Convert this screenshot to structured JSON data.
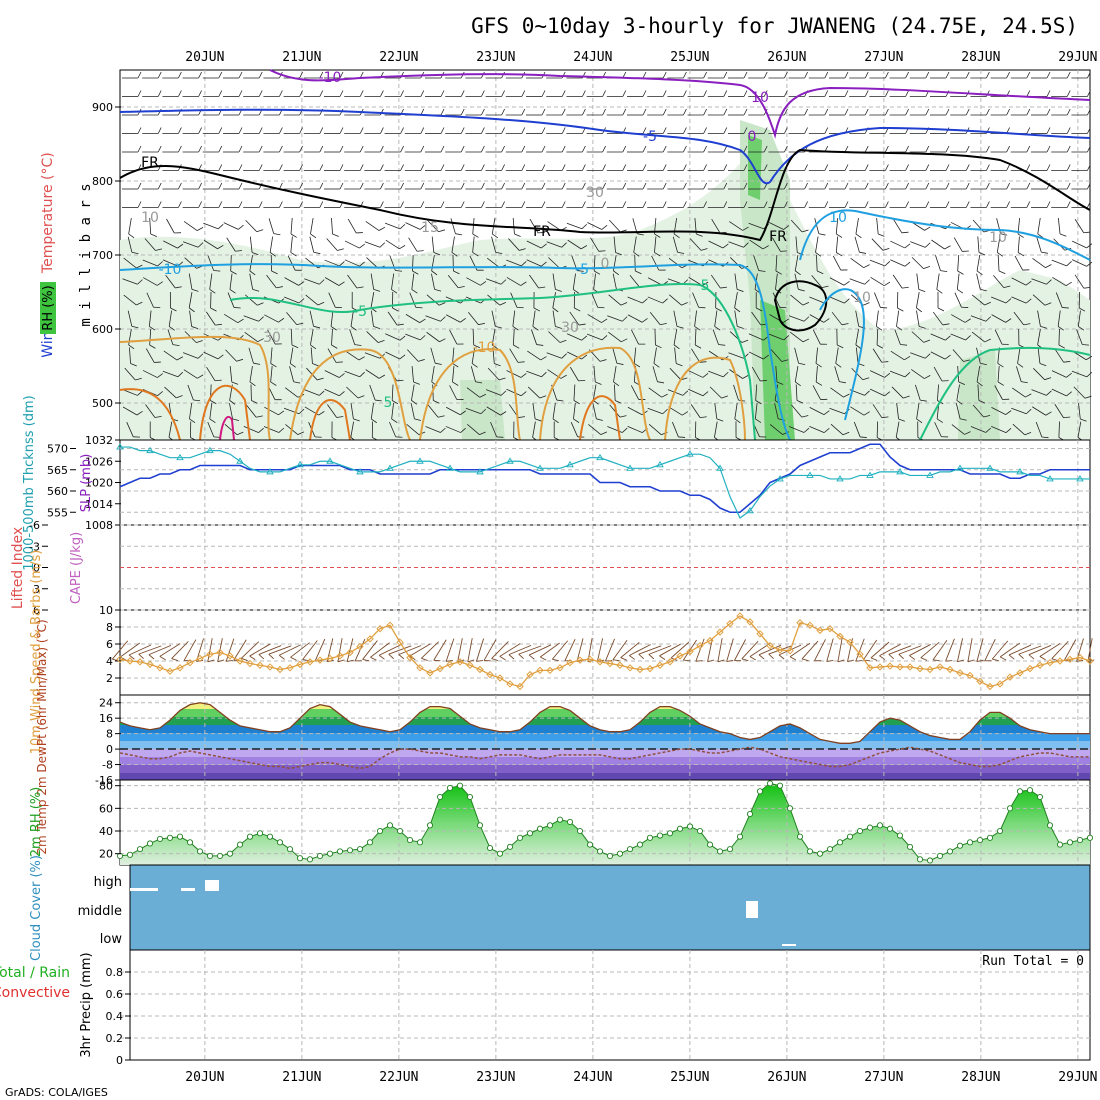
{
  "title": "GFS 0~10day 3-hourly for JWANENG (24.75E, 24.5S)",
  "footer": "GrADS: COLA/IGES",
  "x_axis": {
    "dates": [
      "20JUN",
      "21JUN",
      "22JUN",
      "23JUN",
      "24JUN",
      "25JUN",
      "26JUN",
      "27JUN",
      "28JUN",
      "29JUN"
    ],
    "hours_total": 240
  },
  "colors": {
    "grid": "#bfbfbf",
    "purple": "#8a1fbf",
    "blue": "#1f3fd0",
    "cyan": "#1fa0e0",
    "green": "#20c080",
    "orange": "#e0a040",
    "orange_dark": "#e07820",
    "magenta": "#d01880",
    "rh_green": "#3ec43e",
    "slp": "#20b0c0",
    "wind": "#e0a040",
    "cloud": "#6aaed6"
  },
  "chart_data": [
    {
      "type": "contour",
      "panel": "upper_air",
      "ylabel": "m i l l i b a r s",
      "legend_labels": [
        "Wind (m/s)",
        "Temperature (°C)",
        "RH (%)"
      ],
      "y_ticks": [
        500,
        600,
        700,
        800,
        900
      ],
      "ylim": [
        450,
        950
      ],
      "contour_labels": [
        "-10",
        "10",
        "-5",
        "0",
        "FR",
        "FR",
        "FR",
        "-10",
        "-5",
        "5",
        "-5",
        "10",
        "-10",
        "5",
        "10",
        "15",
        "0",
        "30",
        "30",
        "30",
        "10",
        "10"
      ]
    },
    {
      "type": "line",
      "panel": "thickness_slp",
      "ylabel_left": "1000-500mb Thcknss (dm)",
      "ylabel_right": "SLP (mb)",
      "y_ticks_left": [
        555,
        560,
        565,
        570
      ],
      "ylim_left": [
        552,
        572
      ],
      "y_ticks_right": [
        1008,
        1014,
        1020,
        1026,
        1032
      ],
      "ylim_right": [
        1008,
        1032
      ],
      "series": [
        {
          "name": "1000-500mb Thcknss (dm)",
          "values": [
            561,
            562,
            563,
            563,
            564,
            564,
            565,
            565,
            566,
            566,
            566,
            566,
            566,
            565,
            565,
            565,
            565,
            565,
            566,
            566,
            566,
            566,
            566,
            565,
            565,
            565,
            564,
            564,
            564,
            564,
            564,
            564,
            565,
            565,
            565,
            565,
            565,
            565,
            565,
            565,
            565,
            565,
            564,
            564,
            564,
            564,
            564,
            564,
            562,
            562,
            562,
            561,
            561,
            561,
            560,
            560,
            560,
            559,
            559,
            558,
            556,
            555,
            555,
            557,
            559,
            562,
            563,
            564,
            566,
            567,
            568,
            569,
            569,
            569,
            570,
            571,
            571,
            568,
            566,
            565,
            565,
            565,
            565,
            565,
            565,
            564,
            564,
            564,
            564,
            563,
            563,
            564,
            564,
            565,
            565,
            565,
            565,
            565
          ]
        },
        {
          "name": "SLP (mb)",
          "values": [
            1030,
            1030,
            1029,
            1029,
            1028,
            1027,
            1027,
            1027,
            1028,
            1029,
            1029,
            1028,
            1026,
            1024,
            1023,
            1023,
            1023,
            1024,
            1025,
            1025,
            1026,
            1026,
            1025,
            1024,
            1023,
            1023,
            1023,
            1024,
            1025,
            1026,
            1026,
            1026,
            1025,
            1024,
            1023,
            1023,
            1023,
            1024,
            1025,
            1026,
            1026,
            1025,
            1024,
            1024,
            1024,
            1025,
            1026,
            1027,
            1027,
            1026,
            1025,
            1024,
            1024,
            1024,
            1025,
            1026,
            1027,
            1028,
            1028,
            1027,
            1024,
            1016,
            1010,
            1012,
            1016,
            1019,
            1021,
            1022,
            1022,
            1022,
            1022,
            1021,
            1021,
            1021,
            1022,
            1022,
            1023,
            1023,
            1023,
            1022,
            1022,
            1022,
            1023,
            1023,
            1024,
            1024,
            1024,
            1024,
            1023,
            1023,
            1023,
            1022,
            1022,
            1021,
            1021,
            1021,
            1021,
            1021
          ]
        }
      ]
    },
    {
      "type": "line",
      "panel": "cape_li",
      "ylabel_left": "Lifted Index",
      "ylabel_right": "CAPE (J/kg)",
      "y_ticks": [
        -6,
        -3,
        0,
        3,
        6
      ],
      "ylim": [
        -6,
        6
      ],
      "series": [
        {
          "name": "Lifted Index",
          "values": []
        }
      ]
    },
    {
      "type": "line",
      "panel": "wind10m",
      "ylabel": "10m Wind Speed & Barbs (m/s)",
      "y_ticks": [
        2,
        4,
        6,
        8,
        10
      ],
      "ylim": [
        0,
        10
      ],
      "series": [
        {
          "name": "10m Wind Speed",
          "values": [
            4.2,
            4.0,
            3.9,
            3.6,
            3.2,
            2.8,
            3.2,
            3.8,
            4.3,
            4.8,
            5.0,
            4.6,
            4.0,
            3.7,
            3.5,
            3.3,
            3.0,
            3.2,
            3.6,
            3.9,
            4.1,
            4.3,
            4.6,
            5.0,
            5.7,
            6.6,
            7.8,
            8.2,
            6.2,
            4.4,
            3.2,
            2.6,
            3.1,
            3.6,
            3.9,
            3.5,
            3.0,
            2.4,
            2.0,
            1.3,
            1.0,
            2.4,
            2.9,
            2.9,
            3.2,
            3.8,
            4.1,
            4.2,
            3.9,
            3.7,
            3.5,
            3.2,
            3.0,
            3.1,
            3.5,
            3.9,
            4.6,
            5.1,
            5.8,
            6.4,
            7.4,
            8.4,
            9.3,
            8.6,
            7.2,
            5.8,
            5.3,
            5.2,
            8.5,
            8.2,
            7.6,
            7.8,
            6.9,
            6.2,
            4.8,
            3.2,
            3.3,
            3.4,
            3.3,
            3.3,
            3.1,
            3.0,
            3.3,
            3.0,
            2.6,
            2.3,
            1.6,
            1.0,
            1.3,
            2.1,
            2.6,
            3.1,
            3.5,
            3.8,
            4.0,
            4.2,
            4.4,
            4.0
          ]
        }
      ]
    },
    {
      "type": "area",
      "panel": "temp2m",
      "ylabel": "2m Temp 2m DewPt (6hr Min/Max) (°C)",
      "y_ticks": [
        -16,
        -8,
        0,
        8,
        16,
        24
      ],
      "ylim": [
        -16,
        28
      ],
      "series": [
        {
          "name": "2m Temp",
          "values": [
            14,
            12,
            11,
            10,
            11,
            15,
            20,
            23,
            24,
            23,
            19,
            15,
            12,
            11,
            10,
            9,
            9,
            11,
            16,
            21,
            23,
            22,
            18,
            14,
            12,
            11,
            10,
            9,
            10,
            14,
            19,
            22,
            22,
            21,
            17,
            13,
            11,
            10,
            9,
            9,
            10,
            14,
            19,
            22,
            22,
            20,
            16,
            12,
            10,
            9,
            9,
            10,
            14,
            19,
            22,
            22,
            20,
            17,
            13,
            11,
            9,
            8,
            6,
            5,
            6,
            9,
            12,
            13,
            11,
            8,
            5,
            4,
            3,
            3,
            4,
            9,
            14,
            16,
            15,
            12,
            9,
            7,
            6,
            5,
            5,
            9,
            15,
            19,
            19,
            16,
            12,
            10,
            9,
            8,
            8,
            8,
            8,
            8
          ]
        },
        {
          "name": "2m DewPt",
          "values": [
            -2,
            -3,
            -4,
            -5,
            -5,
            -4,
            -2,
            -1,
            -2,
            -3,
            -4,
            -5,
            -6,
            -7,
            -8,
            -9,
            -9,
            -10,
            -9,
            -8,
            -7,
            -7,
            -8,
            -9,
            -10,
            -9,
            -5,
            -2,
            0,
            0,
            -1,
            -2,
            -2,
            -3,
            -4,
            -4,
            -5,
            -4,
            -3,
            -3,
            -3,
            -4,
            -5,
            -4,
            -3,
            -3,
            -3,
            -3,
            -3,
            -4,
            -5,
            -5,
            -4,
            -3,
            -2,
            -1,
            0,
            0,
            -1,
            -2,
            -2,
            -1,
            0,
            1,
            0,
            -2,
            -4,
            -5,
            -6,
            -7,
            -8,
            -9,
            -9,
            -8,
            -6,
            -4,
            -2,
            -1,
            0,
            1,
            0,
            -1,
            -3,
            -5,
            -7,
            -8,
            -9,
            -9,
            -8,
            -6,
            -4,
            -3,
            -2,
            -2,
            -3,
            -4,
            -4,
            -4
          ]
        }
      ]
    },
    {
      "type": "area",
      "panel": "rh2m",
      "ylabel": "2m RH (%)",
      "y_ticks": [
        20,
        40,
        60,
        80
      ],
      "ylim": [
        10,
        85
      ],
      "series": [
        {
          "name": "2m RH",
          "values": [
            18,
            19,
            24,
            29,
            33,
            34,
            35,
            30,
            22,
            18,
            18,
            20,
            28,
            35,
            38,
            35,
            30,
            24,
            16,
            15,
            18,
            20,
            22,
            23,
            24,
            30,
            40,
            45,
            40,
            32,
            30,
            45,
            70,
            78,
            80,
            70,
            45,
            25,
            20,
            26,
            34,
            38,
            42,
            45,
            50,
            48,
            40,
            28,
            22,
            18,
            20,
            24,
            28,
            34,
            36,
            38,
            42,
            44,
            40,
            28,
            22,
            24,
            35,
            55,
            75,
            82,
            80,
            60,
            35,
            22,
            20,
            24,
            30,
            35,
            40,
            43,
            45,
            42,
            36,
            26,
            15,
            14,
            18,
            22,
            27,
            30,
            32,
            34,
            40,
            60,
            75,
            76,
            70,
            45,
            28,
            30,
            32,
            34
          ]
        }
      ]
    },
    {
      "type": "bar",
      "panel": "cloud",
      "ylabel": "Cloud Cover (%)",
      "levels": [
        "high",
        "middle",
        "low"
      ]
    },
    {
      "type": "bar",
      "panel": "precip",
      "ylabel": "3hr Precip (mm)",
      "legend_labels": [
        "Total / Rain",
        "Convective"
      ],
      "y_ticks": [
        0,
        0.2,
        0.4,
        0.6,
        0.8
      ],
      "ylim": [
        0,
        1
      ],
      "run_total": "Run Total = 0",
      "values": []
    }
  ]
}
